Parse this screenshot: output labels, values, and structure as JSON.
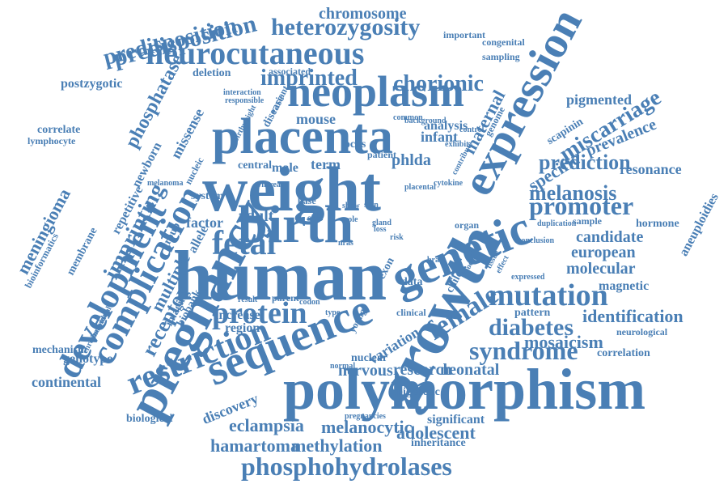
{
  "cloud": {
    "color": "#4a7fb5",
    "words": [
      "polymorphism",
      "human",
      "weight",
      "birth",
      "growth",
      "placenta",
      "pregnancy",
      "expression",
      "genetic",
      "sequence",
      "neoplasm",
      "neurocutaneous",
      "fetal",
      "restriction",
      "complication",
      "development",
      "mutation",
      "protein",
      "promoter",
      "female",
      "syndrome",
      "diabetes",
      "phosphohydrolases",
      "imprinting",
      "heterozygosity",
      "imprinted",
      "predisposition",
      "chorionic",
      "miscarriage",
      "melanosis",
      "prediction",
      "meningioma",
      "receptor",
      "phosphatase",
      "hamartoma",
      "methylation",
      "eclampsia",
      "melanocytic",
      "adolescent",
      "identification",
      "mosaicism",
      "candidate",
      "european",
      "molecular",
      "specific",
      "maternal",
      "adult",
      "factor",
      "multiple",
      "nervous",
      "research",
      "neonatal",
      "chromosome",
      "postzygotic",
      "mouse",
      "infant",
      "analysis",
      "phlda",
      "term",
      "male",
      "central",
      "system",
      "pigmented",
      "prevalence",
      "resonance",
      "magnetic",
      "hormone",
      "aneuploidies",
      "continental",
      "genotype",
      "mechanism",
      "correlation",
      "neurological",
      "discovery",
      "biological",
      "significant",
      "inheritance",
      "epigenetic",
      "variation",
      "nuclear",
      "increase",
      "region",
      "biobank",
      "imaging",
      "repetitive",
      "newborn",
      "missense",
      "membrane",
      "bioinformatics",
      "correlate",
      "lymphocyte",
      "predisposition",
      "important",
      "congenital",
      "sampling",
      "deletion",
      "interaction",
      "disease",
      "variant",
      "common",
      "background",
      "genome",
      "locus",
      "patient",
      "melanoma",
      "group",
      "allele",
      "nucleic",
      "data",
      "organ",
      "sample",
      "duplication",
      "expressed",
      "pattern",
      "effect",
      "child",
      "brain",
      "exon",
      "clinical",
      "young",
      "type",
      "codon",
      "parent",
      "nras",
      "risk",
      "loss",
      "size",
      "base",
      "role",
      "show",
      "skin",
      "gland",
      "result",
      "associated",
      "responsible",
      "birthweight",
      "scapinin",
      "chromosomal",
      "individual",
      "normal",
      "pregnancies",
      "control",
      "conclusion",
      "model",
      "tissue",
      "whereas",
      "placental",
      "cytokine",
      "contribute",
      "exhibit"
    ]
  }
}
